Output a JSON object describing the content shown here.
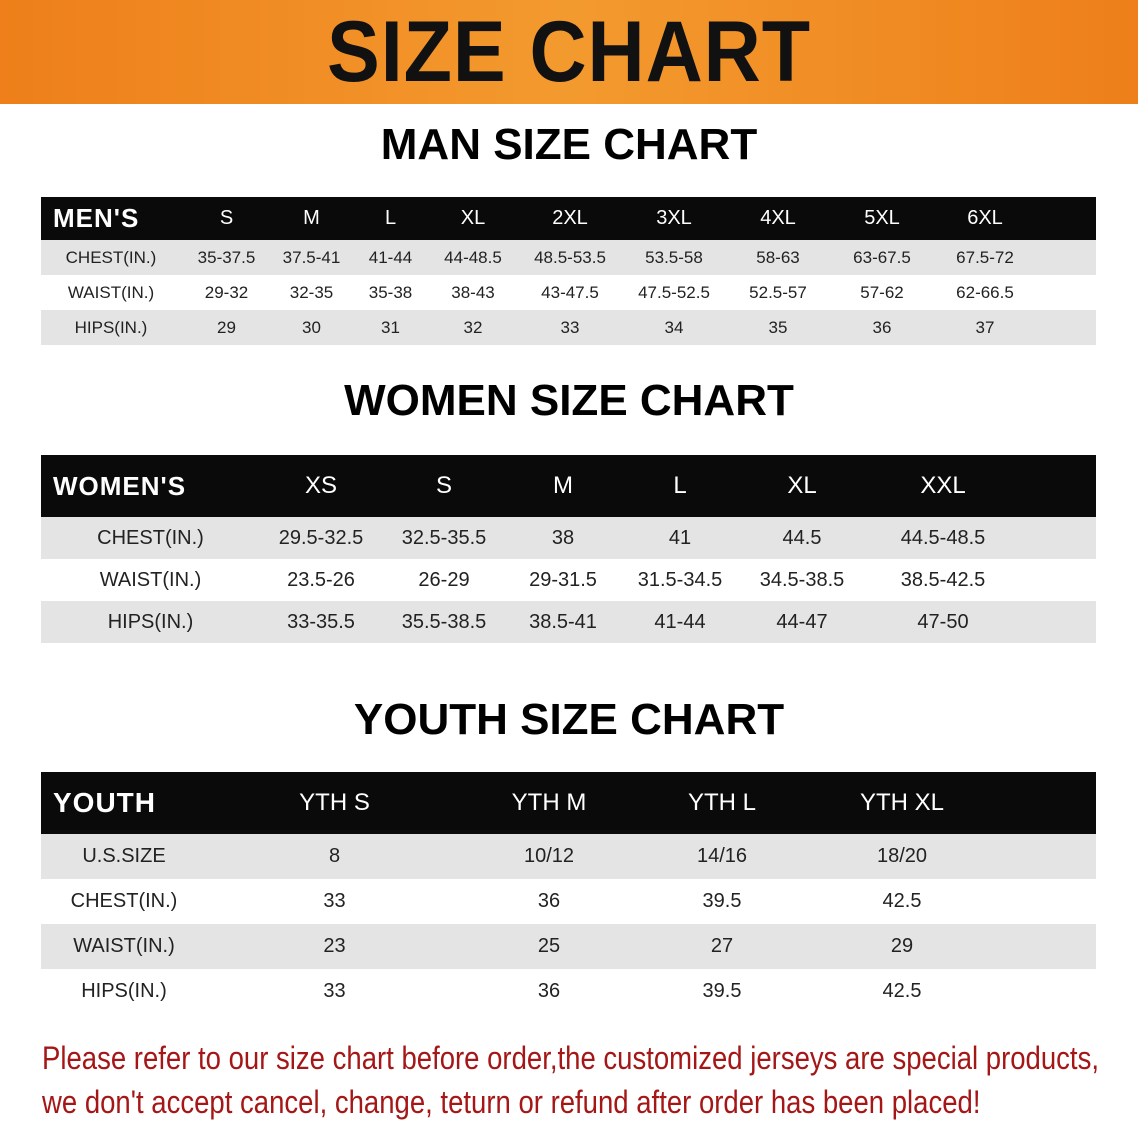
{
  "banner_title": "SIZE CHART",
  "men": {
    "title": "MAN SIZE CHART",
    "header": [
      "MEN'S",
      "S",
      "M",
      "L",
      "XL",
      "2XL",
      "3XL",
      "4XL",
      "5XL",
      "6XL"
    ],
    "rows": [
      [
        "CHEST(IN.)",
        "35-37.5",
        "37.5-41",
        "41-44",
        "44-48.5",
        "48.5-53.5",
        "53.5-58",
        "58-63",
        "63-67.5",
        "67.5-72"
      ],
      [
        "WAIST(IN.)",
        "29-32",
        "32-35",
        "35-38",
        "38-43",
        "43-47.5",
        "47.5-52.5",
        "52.5-57",
        "57-62",
        "62-66.5"
      ],
      [
        "HIPS(IN.)",
        "29",
        "30",
        "31",
        "32",
        "33",
        "34",
        "35",
        "36",
        "37"
      ]
    ]
  },
  "women": {
    "title": "WOMEN SIZE CHART",
    "header": [
      "WOMEN'S",
      "XS",
      "S",
      "M",
      "L",
      "XL",
      "XXL"
    ],
    "rows": [
      [
        "CHEST(IN.)",
        "29.5-32.5",
        "32.5-35.5",
        "38",
        "41",
        "44.5",
        "44.5-48.5"
      ],
      [
        "WAIST(IN.)",
        "23.5-26",
        "26-29",
        "29-31.5",
        "31.5-34.5",
        "34.5-38.5",
        "38.5-42.5"
      ],
      [
        "HIPS(IN.)",
        "33-35.5",
        "35.5-38.5",
        "38.5-41",
        "41-44",
        "44-47",
        "47-50"
      ]
    ]
  },
  "youth": {
    "title": "YOUTH SIZE CHART",
    "header": [
      "YOUTH",
      "YTH S",
      "YTH M",
      "YTH L",
      "YTH XL"
    ],
    "rows": [
      [
        "U.S.SIZE",
        "8",
        "10/12",
        "14/16",
        "18/20"
      ],
      [
        "CHEST(IN.)",
        "33",
        "36",
        "39.5",
        "42.5"
      ],
      [
        "WAIST(IN.)",
        "23",
        "25",
        "27",
        "29"
      ],
      [
        "HIPS(IN.)",
        "33",
        "36",
        "39.5",
        "42.5"
      ]
    ]
  },
  "notice": {
    "line1": "Please refer to our size chart before order,the customized jerseys are special products,",
    "line2": "we don't accept cancel, change, teturn or refund after order has been placed!"
  },
  "colors": {
    "banner": "#ee7f1a",
    "header_row": "#0a0a0a",
    "stripe": "#e4e4e4",
    "notice": "#a51717"
  }
}
